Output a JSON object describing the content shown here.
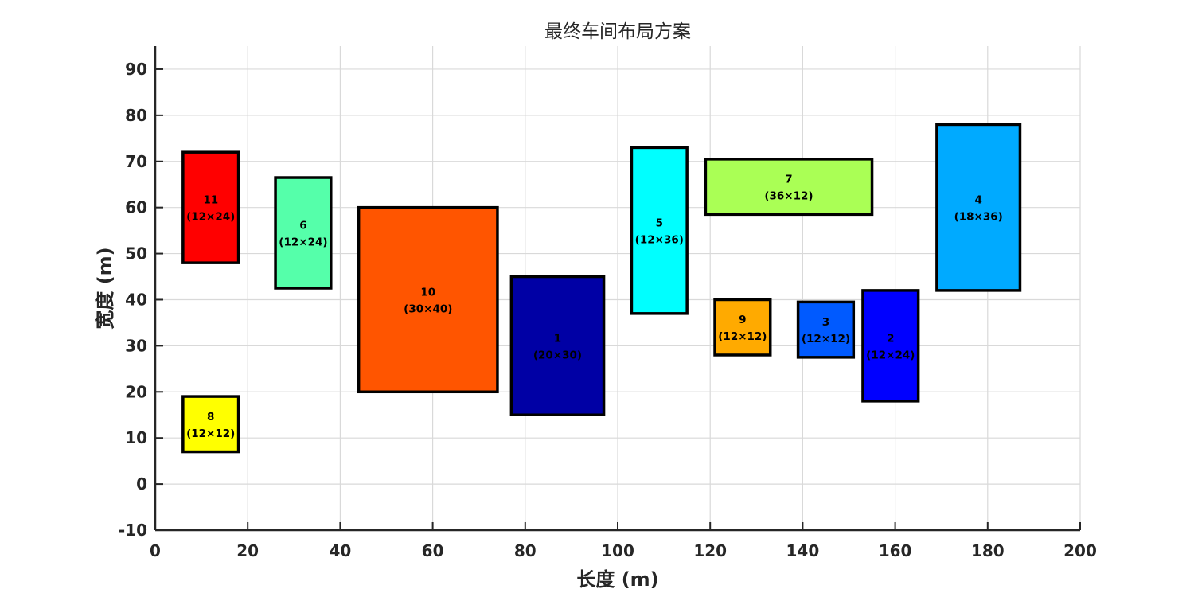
{
  "chart_data": {
    "type": "layout",
    "title": "最终车间布局方案",
    "xlabel": "长度 (m)",
    "ylabel": "宽度 (m)",
    "xlim": [
      0,
      200
    ],
    "ylim": [
      -10,
      95
    ],
    "xticks": [
      0,
      20,
      40,
      60,
      80,
      100,
      120,
      140,
      160,
      180,
      200
    ],
    "yticks": [
      -10,
      0,
      10,
      20,
      30,
      40,
      50,
      60,
      70,
      80,
      90
    ],
    "grid": true,
    "rects": [
      {
        "id": "1",
        "size_label": "(20×30)",
        "x": 77,
        "y": 15,
        "w": 20,
        "h": 30,
        "color": "#0000A5"
      },
      {
        "id": "2",
        "size_label": "(12×24)",
        "x": 153,
        "y": 18,
        "w": 12,
        "h": 24,
        "color": "#0000FF"
      },
      {
        "id": "3",
        "size_label": "(12×12)",
        "x": 139,
        "y": 27.5,
        "w": 12,
        "h": 12,
        "color": "#005AFF"
      },
      {
        "id": "4",
        "size_label": "(18×36)",
        "x": 169,
        "y": 42,
        "w": 18,
        "h": 36,
        "color": "#00AAFF"
      },
      {
        "id": "5",
        "size_label": "(12×36)",
        "x": 103,
        "y": 37,
        "w": 12,
        "h": 36,
        "color": "#00FFFF"
      },
      {
        "id": "6",
        "size_label": "(12×24)",
        "x": 26,
        "y": 42.5,
        "w": 12,
        "h": 24,
        "color": "#55FFAA"
      },
      {
        "id": "7",
        "size_label": "(36×12)",
        "x": 119,
        "y": 58.5,
        "w": 36,
        "h": 12,
        "color": "#AAFF55"
      },
      {
        "id": "8",
        "size_label": "(12×12)",
        "x": 6,
        "y": 7,
        "w": 12,
        "h": 12,
        "color": "#FFFF00"
      },
      {
        "id": "9",
        "size_label": "(12×12)",
        "x": 121,
        "y": 28,
        "w": 12,
        "h": 12,
        "color": "#FFAA00"
      },
      {
        "id": "10",
        "size_label": "(30×40)",
        "x": 44,
        "y": 20,
        "w": 30,
        "h": 40,
        "color": "#FF5500"
      },
      {
        "id": "11",
        "size_label": "(12×24)",
        "x": 6,
        "y": 48,
        "w": 12,
        "h": 24,
        "color": "#FF0000"
      }
    ]
  }
}
